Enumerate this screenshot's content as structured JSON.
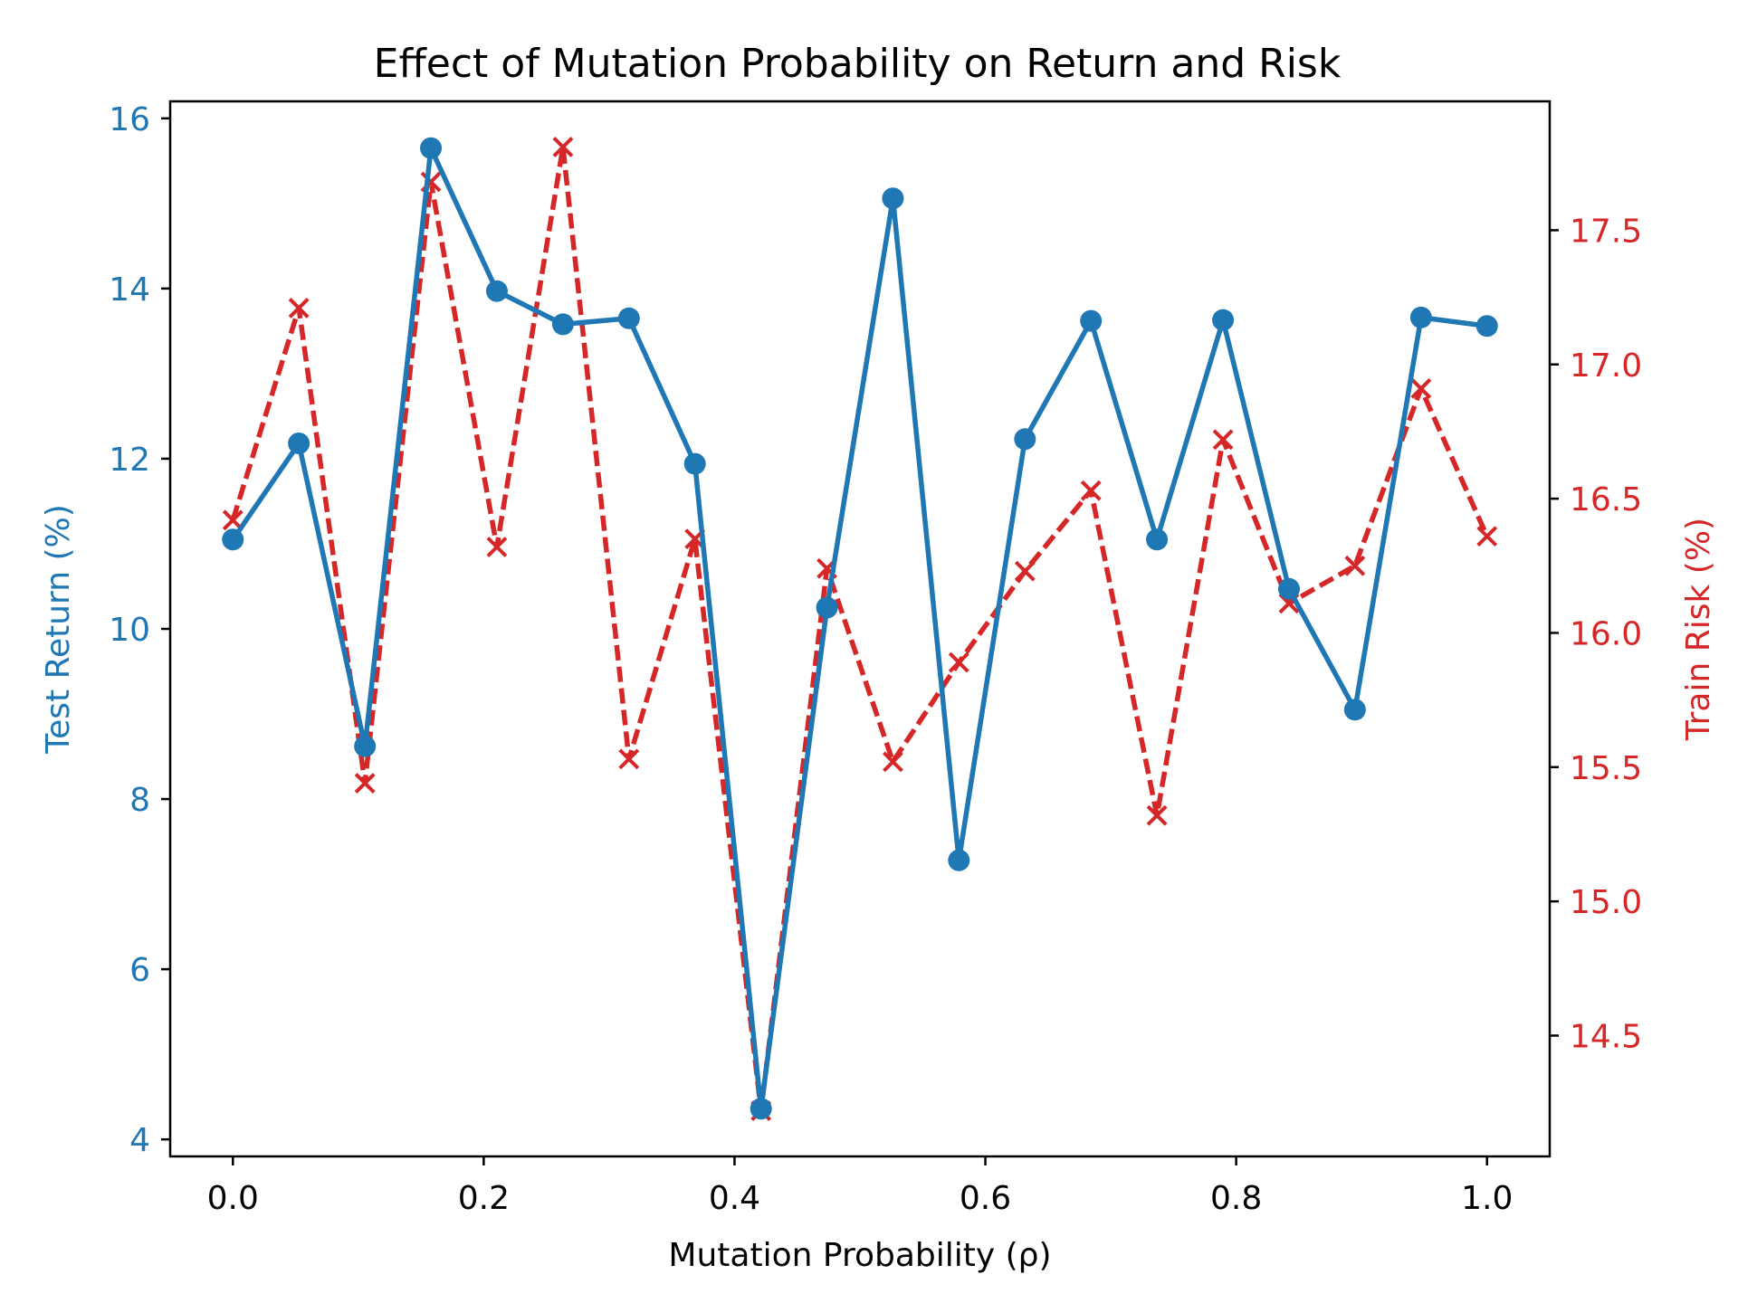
{
  "chart_data": {
    "type": "line",
    "title": "Effect of Mutation Probability on Return and Risk",
    "xlabel": "Mutation Probability (ρ)",
    "ylabel_left": "Test Return (%)",
    "ylabel_right": "Train Risk (%)",
    "grid": false,
    "xlim": [
      -0.05,
      1.05
    ],
    "ylim_left": [
      3.8,
      16.2
    ],
    "ylim_right": [
      14.05,
      17.98
    ],
    "x_ticks": [
      0.0,
      0.2,
      0.4,
      0.6,
      0.8,
      1.0
    ],
    "x_tick_labels": [
      "0.0",
      "0.2",
      "0.4",
      "0.6",
      "0.8",
      "1.0"
    ],
    "y_left_ticks": [
      4,
      6,
      8,
      10,
      12,
      14,
      16
    ],
    "y_left_tick_labels": [
      "4",
      "6",
      "8",
      "10",
      "12",
      "14",
      "16"
    ],
    "y_right_ticks": [
      14.5,
      15.0,
      15.5,
      16.0,
      16.5,
      17.0,
      17.5
    ],
    "y_right_tick_labels": [
      "14.5",
      "15.0",
      "15.5",
      "16.0",
      "16.5",
      "17.0",
      "17.5"
    ],
    "x": [
      0.0,
      0.0526,
      0.1053,
      0.1579,
      0.2105,
      0.2632,
      0.3158,
      0.3684,
      0.4211,
      0.4737,
      0.5263,
      0.5789,
      0.6316,
      0.6842,
      0.7368,
      0.7895,
      0.8421,
      0.8947,
      0.9474,
      1.0
    ],
    "series": [
      {
        "axis": "left",
        "color": "#1f77b4",
        "line_style": "solid",
        "marker": "circle",
        "values": [
          11.05,
          12.18,
          8.62,
          15.65,
          13.97,
          13.58,
          13.65,
          11.94,
          4.36,
          10.25,
          15.06,
          7.28,
          12.23,
          13.62,
          11.05,
          13.63,
          10.47,
          9.05,
          13.66,
          13.56
        ]
      },
      {
        "axis": "right",
        "color": "#d62728",
        "line_style": "dashed",
        "marker": "x",
        "values": [
          16.42,
          17.21,
          15.44,
          17.68,
          16.32,
          17.81,
          15.53,
          16.35,
          14.22,
          16.24,
          15.52,
          15.89,
          16.23,
          16.53,
          15.32,
          16.72,
          16.11,
          16.25,
          16.91,
          16.36
        ]
      }
    ]
  }
}
